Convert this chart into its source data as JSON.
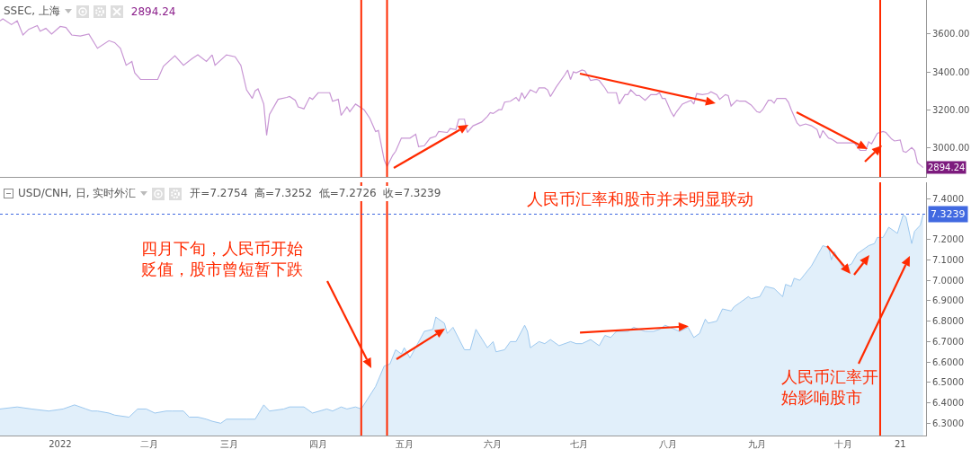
{
  "chart_data": [
    {
      "type": "line",
      "title": "SSEC, 上海",
      "subtitle": "2894.24",
      "tick_labels": "y",
      "xlim": [
        "2021-12-11",
        "2022-10-30"
      ],
      "ylim": [
        2845,
        3780
      ],
      "yticks": [
        {
          "value": 3000,
          "label": "3000.00"
        },
        {
          "value": 3200,
          "label": "3200.00"
        },
        {
          "value": 3400,
          "label": "3400.00"
        },
        {
          "value": 3600,
          "label": "3600.00"
        }
      ],
      "x": [
        "2021-12-11",
        "2021-12-12",
        "2021-12-15",
        "2021-12-17",
        "2021-12-19",
        "2021-12-21",
        "2021-12-24",
        "2021-12-25",
        "2021-12-27",
        "2021-12-29",
        "2022-01-01",
        "2022-01-03",
        "2022-01-05",
        "2022-01-08",
        "2022-01-11",
        "2022-01-14",
        "2022-01-18",
        "2022-01-20",
        "2022-01-22",
        "2022-01-24",
        "2022-01-26",
        "2022-01-27",
        "2022-01-29",
        "2022-02-04",
        "2022-02-06",
        "2022-02-10",
        "2022-02-13",
        "2022-02-16",
        "2022-02-18",
        "2022-02-21",
        "2022-02-23",
        "2022-02-24",
        "2022-02-28",
        "2022-03-03",
        "2022-03-05",
        "2022-03-07",
        "2022-03-09",
        "2022-03-10",
        "2022-03-11",
        "2022-03-13",
        "2022-03-14",
        "2022-03-15",
        "2022-03-18",
        "2022-03-21",
        "2022-03-22",
        "2022-03-24",
        "2022-03-25",
        "2022-03-27",
        "2022-03-29",
        "2022-03-30",
        "2022-04-01",
        "2022-04-05",
        "2022-04-06",
        "2022-04-08",
        "2022-04-09",
        "2022-04-11",
        "2022-04-12",
        "2022-04-14",
        "2022-04-17",
        "2022-04-19",
        "2022-04-21",
        "2022-04-22",
        "2022-04-24",
        "2022-04-25",
        "2022-04-27",
        "2022-04-28",
        "2022-04-30",
        "2022-05-03",
        "2022-05-05",
        "2022-05-06",
        "2022-05-08",
        "2022-05-10",
        "2022-05-12",
        "2022-05-13",
        "2022-05-16",
        "2022-05-17",
        "2022-05-19",
        "2022-05-20",
        "2022-05-22",
        "2022-05-23",
        "2022-05-25",
        "2022-05-28",
        "2022-05-30",
        "2022-05-31",
        "2022-06-01",
        "2022-06-03",
        "2022-06-04",
        "2022-06-05",
        "2022-06-07",
        "2022-06-09",
        "2022-06-10",
        "2022-06-11",
        "2022-06-12",
        "2022-06-14",
        "2022-06-16",
        "2022-06-17",
        "2022-06-19",
        "2022-06-20",
        "2022-06-21",
        "2022-06-23",
        "2022-06-26",
        "2022-06-27",
        "2022-06-28",
        "2022-06-29",
        "2022-06-30",
        "2022-07-02",
        "2022-07-03",
        "2022-07-05",
        "2022-07-07",
        "2022-07-08",
        "2022-07-10",
        "2022-07-11",
        "2022-07-14",
        "2022-07-15",
        "2022-07-17",
        "2022-07-18",
        "2022-07-19",
        "2022-07-21",
        "2022-07-22",
        "2022-07-24",
        "2022-07-26",
        "2022-07-28",
        "2022-07-29",
        "2022-07-30",
        "2022-07-31",
        "2022-08-02",
        "2022-08-03",
        "2022-08-04",
        "2022-08-06",
        "2022-08-09",
        "2022-08-10",
        "2022-08-11",
        "2022-08-13",
        "2022-08-15",
        "2022-08-16",
        "2022-08-18",
        "2022-08-19",
        "2022-08-21",
        "2022-08-22",
        "2022-08-23",
        "2022-08-25",
        "2022-08-26",
        "2022-08-28",
        "2022-08-30",
        "2022-09-01",
        "2022-09-02",
        "2022-09-03",
        "2022-09-05",
        "2022-09-06",
        "2022-09-07",
        "2022-09-08",
        "2022-09-11",
        "2022-09-12",
        "2022-09-13",
        "2022-09-15",
        "2022-09-16",
        "2022-09-18",
        "2022-09-20",
        "2022-09-22",
        "2022-09-23",
        "2022-09-24",
        "2022-09-26",
        "2022-09-27",
        "2022-09-29",
        "2022-10-01",
        "2022-10-05",
        "2022-10-07",
        "2022-10-09",
        "2022-10-10",
        "2022-10-11",
        "2022-10-13",
        "2022-10-15",
        "2022-10-16",
        "2022-10-18",
        "2022-10-19",
        "2022-10-21",
        "2022-10-22",
        "2022-10-23",
        "2022-10-25",
        "2022-10-26",
        "2022-10-27",
        "2022-10-29"
      ],
      "series": [
        {
          "color": "#c896d4",
          "values": [
            3670,
            3680,
            3650,
            3670,
            3595,
            3625,
            3645,
            3615,
            3630,
            3600,
            3640,
            3635,
            3595,
            3590,
            3600,
            3525,
            3565,
            3555,
            3525,
            3435,
            3455,
            3395,
            3360,
            3360,
            3430,
            3485,
            3435,
            3470,
            3490,
            3455,
            3490,
            3435,
            3490,
            3480,
            3435,
            3305,
            3260,
            3300,
            3310,
            3230,
            3065,
            3175,
            3255,
            3265,
            3270,
            3250,
            3215,
            3205,
            3265,
            3255,
            3290,
            3290,
            3245,
            3255,
            3170,
            3215,
            3190,
            3230,
            3200,
            3155,
            3085,
            3090,
            2935,
            2900,
            2960,
            2980,
            3050,
            3050,
            3070,
            3005,
            3010,
            3050,
            3060,
            3085,
            3080,
            3100,
            3095,
            3150,
            3150,
            3080,
            3115,
            3135,
            3165,
            3185,
            3180,
            3200,
            3200,
            3240,
            3245,
            3265,
            3245,
            3290,
            3260,
            3305,
            3290,
            3315,
            3315,
            3305,
            3270,
            3320,
            3385,
            3410,
            3360,
            3400,
            3395,
            3410,
            3405,
            3355,
            3360,
            3355,
            3315,
            3290,
            3290,
            3230,
            3280,
            3280,
            3305,
            3275,
            3275,
            3250,
            3280,
            3280,
            3290,
            3260,
            3260,
            3190,
            3165,
            3190,
            3230,
            3250,
            3230,
            3285,
            3280,
            3285,
            3295,
            3280,
            3255,
            3280,
            3275,
            3220,
            3250,
            3245,
            3245,
            3225,
            3190,
            3185,
            3200,
            3250,
            3250,
            3235,
            3260,
            3260,
            3240,
            3200,
            3130,
            3115,
            3125,
            3115,
            3095,
            3050,
            3090,
            3050,
            3045,
            3025,
            3025,
            3025,
            2985,
            2985,
            3030,
            3020,
            3075,
            3085,
            3080,
            3045,
            3035,
            3040,
            2980,
            2975,
            3000,
            2985,
            2920,
            2894.24
          ]
        }
      ],
      "ref_lines": [
        {
          "axis": "x",
          "value": "2022-04-16",
          "label": null,
          "color": "#ff2a00"
        },
        {
          "axis": "x",
          "value": "2022-04-25",
          "label": null,
          "color": "#ff2a00"
        },
        {
          "axis": "x",
          "value": "2022-10-14",
          "label": null,
          "color": "#ff2a00"
        }
      ],
      "annotations": [
        {
          "text": "2894.24",
          "x": "2022-10-29",
          "y": 2894.24
        }
      ]
    },
    {
      "type": "area",
      "title": "USD/CNH, 日, 实时外汇",
      "subtitle": "开=7.2754  高=7.3252  低=7.2726  收=7.3239",
      "xlim": [
        "2021-12-11",
        "2022-10-30"
      ],
      "ylim": [
        6.24,
        7.48
      ],
      "xticks": [
        {
          "value": "2022-01-01",
          "label": "2022"
        },
        {
          "value": "2022-02-01",
          "label": "二月"
        },
        {
          "value": "2022-03-01",
          "label": "三月"
        },
        {
          "value": "2022-04-01",
          "label": "四月"
        },
        {
          "value": "2022-05-01",
          "label": "五月"
        },
        {
          "value": "2022-06-01",
          "label": "六月"
        },
        {
          "value": "2022-07-01",
          "label": "七月"
        },
        {
          "value": "2022-08-01",
          "label": "八月"
        },
        {
          "value": "2022-09-01",
          "label": "九月"
        },
        {
          "value": "2022-10-01",
          "label": "十月"
        },
        {
          "value": "2022-10-21",
          "label": "21"
        }
      ],
      "yticks": [
        {
          "value": 6.3,
          "label": "6.3000"
        },
        {
          "value": 6.4,
          "label": "6.4000"
        },
        {
          "value": 6.5,
          "label": "6.5000"
        },
        {
          "value": 6.6,
          "label": "6.6000"
        },
        {
          "value": 6.7,
          "label": "6.7000"
        },
        {
          "value": 6.8,
          "label": "6.8000"
        },
        {
          "value": 6.9,
          "label": "6.9000"
        },
        {
          "value": 7.0,
          "label": "7.0000"
        },
        {
          "value": 7.1,
          "label": "7.1000"
        },
        {
          "value": 7.2,
          "label": "7.2000"
        },
        {
          "value": 7.4,
          "label": "7.4000"
        }
      ],
      "x": [
        "2021-12-11",
        "2021-12-17",
        "2021-12-22",
        "2021-12-28",
        "2022-01-02",
        "2022-01-06",
        "2022-01-10",
        "2022-01-12",
        "2022-01-14",
        "2022-01-18",
        "2022-01-20",
        "2022-01-25",
        "2022-01-28",
        "2022-01-31",
        "2022-02-03",
        "2022-02-07",
        "2022-02-09",
        "2022-02-13",
        "2022-02-15",
        "2022-02-18",
        "2022-02-21",
        "2022-02-23",
        "2022-02-26",
        "2022-02-28",
        "2022-03-07",
        "2022-03-10",
        "2022-03-13",
        "2022-03-15",
        "2022-03-20",
        "2022-03-22",
        "2022-03-27",
        "2022-03-30",
        "2022-04-04",
        "2022-04-06",
        "2022-04-09",
        "2022-04-11",
        "2022-04-14",
        "2022-04-16",
        "2022-04-21",
        "2022-04-24",
        "2022-04-26",
        "2022-04-28",
        "2022-04-30",
        "2022-05-01",
        "2022-05-03",
        "2022-05-08",
        "2022-05-11",
        "2022-05-12",
        "2022-05-15",
        "2022-05-16",
        "2022-05-18",
        "2022-05-22",
        "2022-05-24",
        "2022-05-26",
        "2022-05-30",
        "2022-06-01",
        "2022-06-02",
        "2022-06-05",
        "2022-06-07",
        "2022-06-09",
        "2022-06-12",
        "2022-06-13",
        "2022-06-14",
        "2022-06-17",
        "2022-06-19",
        "2022-06-21",
        "2022-06-24",
        "2022-06-28",
        "2022-06-30",
        "2022-07-02",
        "2022-07-05",
        "2022-07-08",
        "2022-07-10",
        "2022-07-12",
        "2022-07-14",
        "2022-07-18",
        "2022-07-20",
        "2022-07-22",
        "2022-07-24",
        "2022-07-27",
        "2022-07-29",
        "2022-07-31",
        "2022-08-05",
        "2022-08-08",
        "2022-08-10",
        "2022-08-12",
        "2022-08-14",
        "2022-08-15",
        "2022-08-18",
        "2022-08-20",
        "2022-08-23",
        "2022-08-24",
        "2022-08-26",
        "2022-08-29",
        "2022-08-30",
        "2022-09-02",
        "2022-09-04",
        "2022-09-07",
        "2022-09-10",
        "2022-09-11",
        "2022-09-13",
        "2022-09-14",
        "2022-09-16",
        "2022-09-20",
        "2022-09-22",
        "2022-09-24",
        "2022-09-26",
        "2022-09-27",
        "2022-09-28",
        "2022-10-01",
        "2022-10-04",
        "2022-10-06",
        "2022-10-10",
        "2022-10-12",
        "2022-10-13",
        "2022-10-15",
        "2022-10-17",
        "2022-10-20",
        "2022-10-22",
        "2022-10-23",
        "2022-10-25",
        "2022-10-26",
        "2022-10-28",
        "2022-10-29"
      ],
      "series": [
        {
          "color": "#9cc8ef",
          "values": [
            6.37,
            6.38,
            6.37,
            6.36,
            6.37,
            6.39,
            6.37,
            6.36,
            6.36,
            6.35,
            6.34,
            6.33,
            6.37,
            6.37,
            6.35,
            6.36,
            6.36,
            6.36,
            6.33,
            6.33,
            6.32,
            6.31,
            6.3,
            6.32,
            6.32,
            6.32,
            6.39,
            6.36,
            6.37,
            6.38,
            6.38,
            6.35,
            6.37,
            6.36,
            6.38,
            6.37,
            6.38,
            6.37,
            6.48,
            6.58,
            6.59,
            6.66,
            6.64,
            6.67,
            6.62,
            6.75,
            6.76,
            6.82,
            6.79,
            6.74,
            6.77,
            6.66,
            6.66,
            6.76,
            6.67,
            6.7,
            6.65,
            6.66,
            6.7,
            6.7,
            6.78,
            6.75,
            6.67,
            6.7,
            6.69,
            6.71,
            6.68,
            6.7,
            6.69,
            6.69,
            6.71,
            6.68,
            6.73,
            6.72,
            6.75,
            6.75,
            6.77,
            6.76,
            6.75,
            6.75,
            6.76,
            6.78,
            6.75,
            6.77,
            6.72,
            6.74,
            6.81,
            6.79,
            6.8,
            6.86,
            6.85,
            6.87,
            6.89,
            6.92,
            6.91,
            6.92,
            6.97,
            6.96,
            6.92,
            6.98,
            6.97,
            7.01,
            7.0,
            7.07,
            7.12,
            7.17,
            7.16,
            7.1,
            7.14,
            7.06,
            7.08,
            7.13,
            7.17,
            7.18,
            7.21,
            7.21,
            7.26,
            7.23,
            7.32,
            7.31,
            7.18,
            7.24,
            7.27,
            7.3239
          ]
        }
      ],
      "ref_lines": [
        {
          "axis": "x",
          "value": "2022-04-16",
          "label": null,
          "color": "#ff2a00"
        },
        {
          "axis": "x",
          "value": "2022-04-25",
          "label": null,
          "color": "#ff2a00"
        },
        {
          "axis": "x",
          "value": "2022-10-14",
          "label": null,
          "color": "#ff2a00"
        },
        {
          "axis": "y",
          "value": 7.3239,
          "label": "7.3239",
          "color": "#4169e1",
          "line_style": "dotted"
        }
      ],
      "annotations": [
        "人民币汇率和股市并未明显联动",
        "四月下旬，人民币开始贬值，股市曾短暂下跌",
        "人民币汇率开始影响股市"
      ]
    }
  ]
}
